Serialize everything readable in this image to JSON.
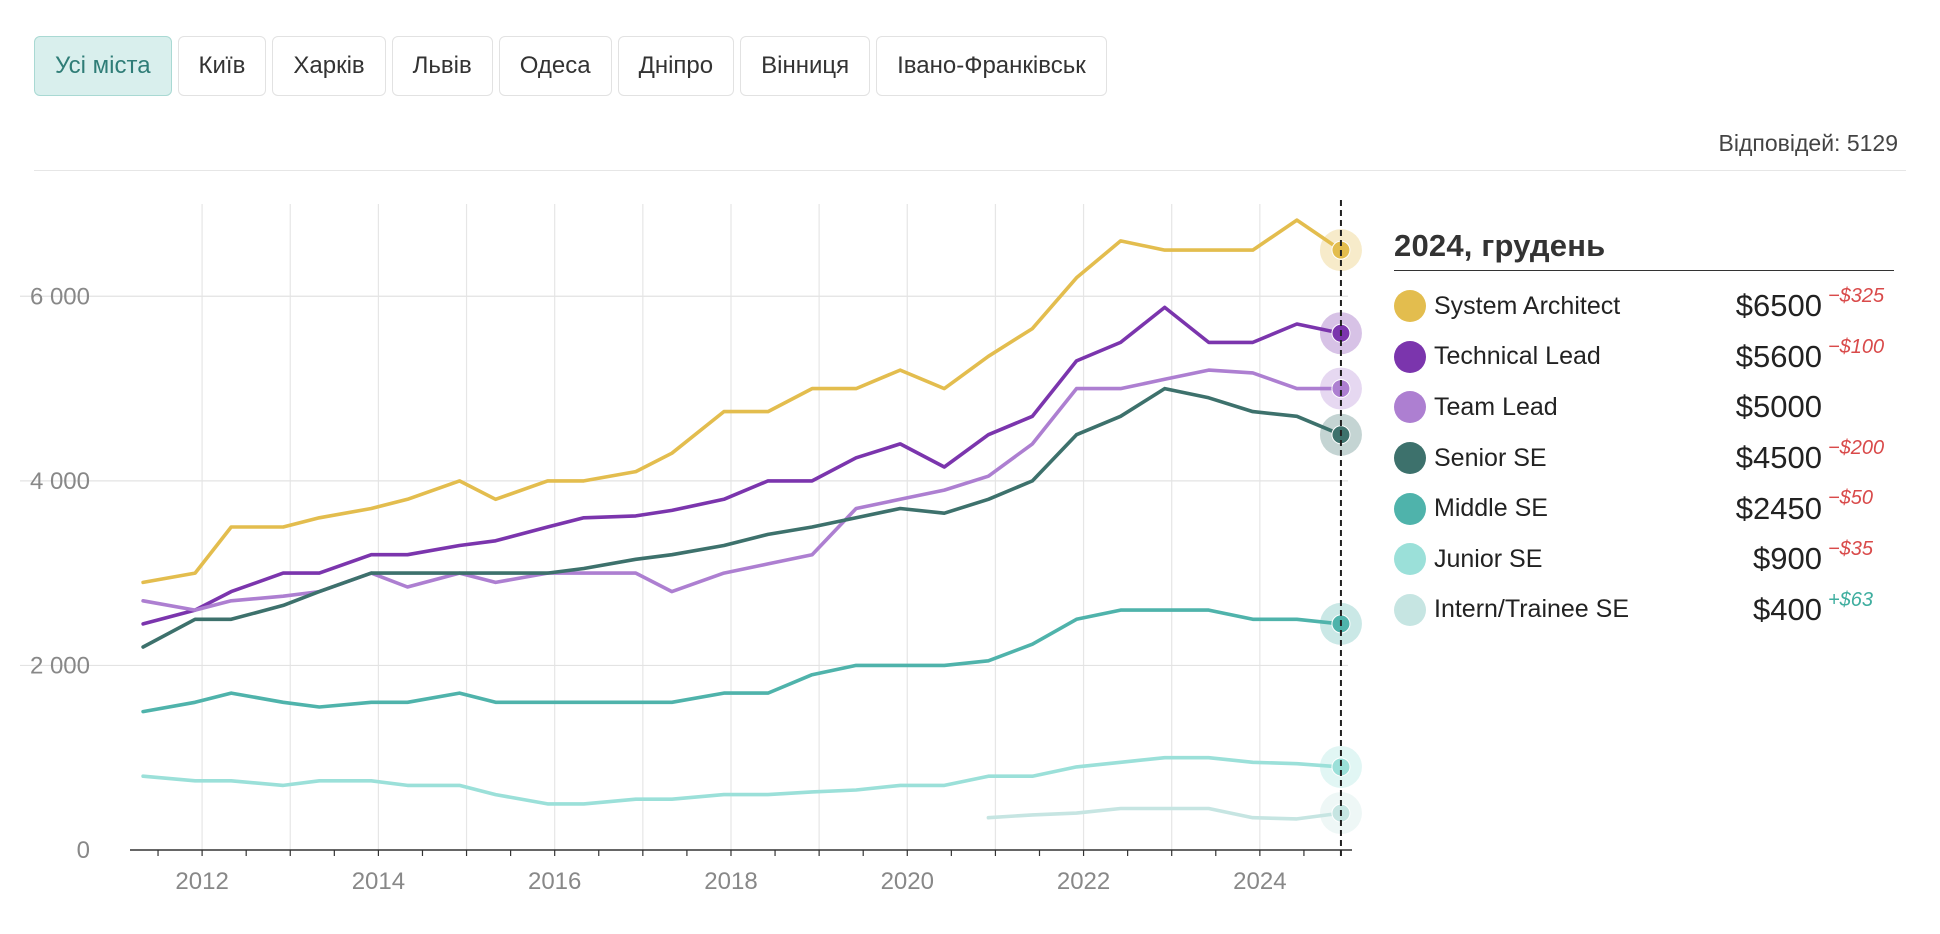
{
  "tabs": [
    {
      "label": "Усі міста",
      "active": true
    },
    {
      "label": "Київ",
      "active": false
    },
    {
      "label": "Харків",
      "active": false
    },
    {
      "label": "Львів",
      "active": false
    },
    {
      "label": "Одеса",
      "active": false
    },
    {
      "label": "Дніпро",
      "active": false
    },
    {
      "label": "Вінниця",
      "active": false
    },
    {
      "label": "Івано-Франківськ",
      "active": false
    }
  ],
  "responses": "Відповідей: 5129",
  "legend": {
    "title": "2024, грудень",
    "items": [
      {
        "name": "System Architect",
        "value": "$6500",
        "delta": "−$325",
        "sign": "neg",
        "color": "#e3bd4e"
      },
      {
        "name": "Technical Lead",
        "value": "$5600",
        "delta": "−$100",
        "sign": "neg",
        "color": "#7b35ad"
      },
      {
        "name": "Team Lead",
        "value": "$5000",
        "delta": "",
        "sign": "neg",
        "color": "#ad7fd1"
      },
      {
        "name": "Senior SE",
        "value": "$4500",
        "delta": "−$200",
        "sign": "neg",
        "color": "#3d716c"
      },
      {
        "name": "Middle SE",
        "value": "$2450",
        "delta": "−$50",
        "sign": "neg",
        "color": "#4fb3ab"
      },
      {
        "name": "Junior SE",
        "value": "$900",
        "delta": "−$35",
        "sign": "neg",
        "color": "#9be0d9"
      },
      {
        "name": "Intern/Trainee SE",
        "value": "$400",
        "delta": "+$63",
        "sign": "pos",
        "color": "#c6e5e2"
      }
    ]
  },
  "chart_data": {
    "type": "line",
    "title": "",
    "xlabel": "",
    "ylabel": "",
    "xlim": [
      2011.25,
      2025.0
    ],
    "ylim": [
      0,
      7000
    ],
    "x_ticks": [
      2012,
      2014,
      2016,
      2018,
      2020,
      2022,
      2024
    ],
    "x_tick_labels": [
      "2012",
      "2014",
      "2016",
      "2018",
      "2020",
      "2022",
      "2024"
    ],
    "y_ticks": [
      0,
      2000,
      4000,
      6000
    ],
    "y_tick_labels": [
      "0",
      "2 000",
      "4 000",
      "6 000"
    ],
    "highlight_x": 2024.92,
    "series": [
      {
        "name": "System Architect",
        "color": "#e3bd4e",
        "points": [
          [
            2011.33,
            2900
          ],
          [
            2011.92,
            3000
          ],
          [
            2012.33,
            3500
          ],
          [
            2012.92,
            3500
          ],
          [
            2013.33,
            3600
          ],
          [
            2013.92,
            3700
          ],
          [
            2014.33,
            3800
          ],
          [
            2014.92,
            4000
          ],
          [
            2015.33,
            3800
          ],
          [
            2015.92,
            4000
          ],
          [
            2016.33,
            4000
          ],
          [
            2016.92,
            4100
          ],
          [
            2017.33,
            4300
          ],
          [
            2017.92,
            4750
          ],
          [
            2018.42,
            4750
          ],
          [
            2018.92,
            5000
          ],
          [
            2019.42,
            5000
          ],
          [
            2019.92,
            5200
          ],
          [
            2020.42,
            5000
          ],
          [
            2020.92,
            5350
          ],
          [
            2021.42,
            5650
          ],
          [
            2021.92,
            6200
          ],
          [
            2022.42,
            6600
          ],
          [
            2022.92,
            6500
          ],
          [
            2023.42,
            6500
          ],
          [
            2023.92,
            6500
          ],
          [
            2024.42,
            6825
          ],
          [
            2024.92,
            6500
          ]
        ]
      },
      {
        "name": "Technical Lead",
        "color": "#7b35ad",
        "points": [
          [
            2011.33,
            2450
          ],
          [
            2011.92,
            2600
          ],
          [
            2012.33,
            2800
          ],
          [
            2012.92,
            3000
          ],
          [
            2013.33,
            3000
          ],
          [
            2013.92,
            3200
          ],
          [
            2014.33,
            3200
          ],
          [
            2014.92,
            3300
          ],
          [
            2015.33,
            3350
          ],
          [
            2015.92,
            3500
          ],
          [
            2016.33,
            3600
          ],
          [
            2016.92,
            3620
          ],
          [
            2017.33,
            3680
          ],
          [
            2017.92,
            3800
          ],
          [
            2018.42,
            4000
          ],
          [
            2018.92,
            4000
          ],
          [
            2019.42,
            4250
          ],
          [
            2019.92,
            4400
          ],
          [
            2020.42,
            4150
          ],
          [
            2020.92,
            4500
          ],
          [
            2021.42,
            4700
          ],
          [
            2021.92,
            5300
          ],
          [
            2022.42,
            5500
          ],
          [
            2022.92,
            5880
          ],
          [
            2023.42,
            5500
          ],
          [
            2023.92,
            5500
          ],
          [
            2024.42,
            5700
          ],
          [
            2024.92,
            5600
          ]
        ]
      },
      {
        "name": "Team Lead",
        "color": "#ad7fd1",
        "points": [
          [
            2011.33,
            2700
          ],
          [
            2011.92,
            2600
          ],
          [
            2012.33,
            2700
          ],
          [
            2012.92,
            2750
          ],
          [
            2013.33,
            2800
          ],
          [
            2013.92,
            3000
          ],
          [
            2014.33,
            2850
          ],
          [
            2014.92,
            3000
          ],
          [
            2015.33,
            2900
          ],
          [
            2015.92,
            3000
          ],
          [
            2016.33,
            3000
          ],
          [
            2016.92,
            3000
          ],
          [
            2017.33,
            2800
          ],
          [
            2017.92,
            3000
          ],
          [
            2018.42,
            3100
          ],
          [
            2018.92,
            3200
          ],
          [
            2019.42,
            3700
          ],
          [
            2019.92,
            3800
          ],
          [
            2020.42,
            3900
          ],
          [
            2020.92,
            4050
          ],
          [
            2021.42,
            4400
          ],
          [
            2021.92,
            5000
          ],
          [
            2022.42,
            5000
          ],
          [
            2022.92,
            5100
          ],
          [
            2023.42,
            5200
          ],
          [
            2023.92,
            5170
          ],
          [
            2024.42,
            5000
          ],
          [
            2024.92,
            5000
          ]
        ]
      },
      {
        "name": "Senior SE",
        "color": "#3d716c",
        "points": [
          [
            2011.33,
            2200
          ],
          [
            2011.92,
            2500
          ],
          [
            2012.33,
            2500
          ],
          [
            2012.92,
            2650
          ],
          [
            2013.33,
            2800
          ],
          [
            2013.92,
            3000
          ],
          [
            2014.33,
            3000
          ],
          [
            2014.92,
            3000
          ],
          [
            2015.33,
            3000
          ],
          [
            2015.92,
            3000
          ],
          [
            2016.33,
            3050
          ],
          [
            2016.92,
            3150
          ],
          [
            2017.33,
            3200
          ],
          [
            2017.92,
            3300
          ],
          [
            2018.42,
            3420
          ],
          [
            2018.92,
            3500
          ],
          [
            2019.42,
            3600
          ],
          [
            2019.92,
            3700
          ],
          [
            2020.42,
            3650
          ],
          [
            2020.92,
            3800
          ],
          [
            2021.42,
            4000
          ],
          [
            2021.92,
            4500
          ],
          [
            2022.42,
            4700
          ],
          [
            2022.92,
            5000
          ],
          [
            2023.42,
            4900
          ],
          [
            2023.92,
            4750
          ],
          [
            2024.42,
            4700
          ],
          [
            2024.92,
            4500
          ]
        ]
      },
      {
        "name": "Middle SE",
        "color": "#4fb3ab",
        "points": [
          [
            2011.33,
            1500
          ],
          [
            2011.92,
            1600
          ],
          [
            2012.33,
            1700
          ],
          [
            2012.92,
            1600
          ],
          [
            2013.33,
            1550
          ],
          [
            2013.92,
            1600
          ],
          [
            2014.33,
            1600
          ],
          [
            2014.92,
            1700
          ],
          [
            2015.33,
            1600
          ],
          [
            2015.92,
            1600
          ],
          [
            2016.33,
            1600
          ],
          [
            2016.92,
            1600
          ],
          [
            2017.33,
            1600
          ],
          [
            2017.92,
            1700
          ],
          [
            2018.42,
            1700
          ],
          [
            2018.92,
            1900
          ],
          [
            2019.42,
            2000
          ],
          [
            2019.92,
            2000
          ],
          [
            2020.42,
            2000
          ],
          [
            2020.92,
            2050
          ],
          [
            2021.42,
            2230
          ],
          [
            2021.92,
            2500
          ],
          [
            2022.42,
            2600
          ],
          [
            2022.92,
            2600
          ],
          [
            2023.42,
            2600
          ],
          [
            2023.92,
            2500
          ],
          [
            2024.42,
            2500
          ],
          [
            2024.92,
            2450
          ]
        ]
      },
      {
        "name": "Junior SE",
        "color": "#9be0d9",
        "points": [
          [
            2011.33,
            800
          ],
          [
            2011.92,
            750
          ],
          [
            2012.33,
            750
          ],
          [
            2012.92,
            700
          ],
          [
            2013.33,
            750
          ],
          [
            2013.92,
            750
          ],
          [
            2014.33,
            700
          ],
          [
            2014.92,
            700
          ],
          [
            2015.33,
            600
          ],
          [
            2015.92,
            500
          ],
          [
            2016.33,
            500
          ],
          [
            2016.92,
            550
          ],
          [
            2017.33,
            550
          ],
          [
            2017.92,
            600
          ],
          [
            2018.42,
            600
          ],
          [
            2018.92,
            630
          ],
          [
            2019.42,
            650
          ],
          [
            2019.92,
            700
          ],
          [
            2020.42,
            700
          ],
          [
            2020.92,
            800
          ],
          [
            2021.42,
            800
          ],
          [
            2021.92,
            900
          ],
          [
            2022.42,
            950
          ],
          [
            2022.92,
            1000
          ],
          [
            2023.42,
            1000
          ],
          [
            2023.92,
            950
          ],
          [
            2024.42,
            935
          ],
          [
            2024.92,
            900
          ]
        ]
      },
      {
        "name": "Intern/Trainee SE",
        "color": "#c6e5e2",
        "points": [
          [
            2020.92,
            350
          ],
          [
            2021.42,
            380
          ],
          [
            2021.92,
            400
          ],
          [
            2022.42,
            450
          ],
          [
            2022.92,
            450
          ],
          [
            2023.42,
            450
          ],
          [
            2023.92,
            350
          ],
          [
            2024.42,
            337
          ],
          [
            2024.92,
            400
          ]
        ]
      }
    ]
  }
}
